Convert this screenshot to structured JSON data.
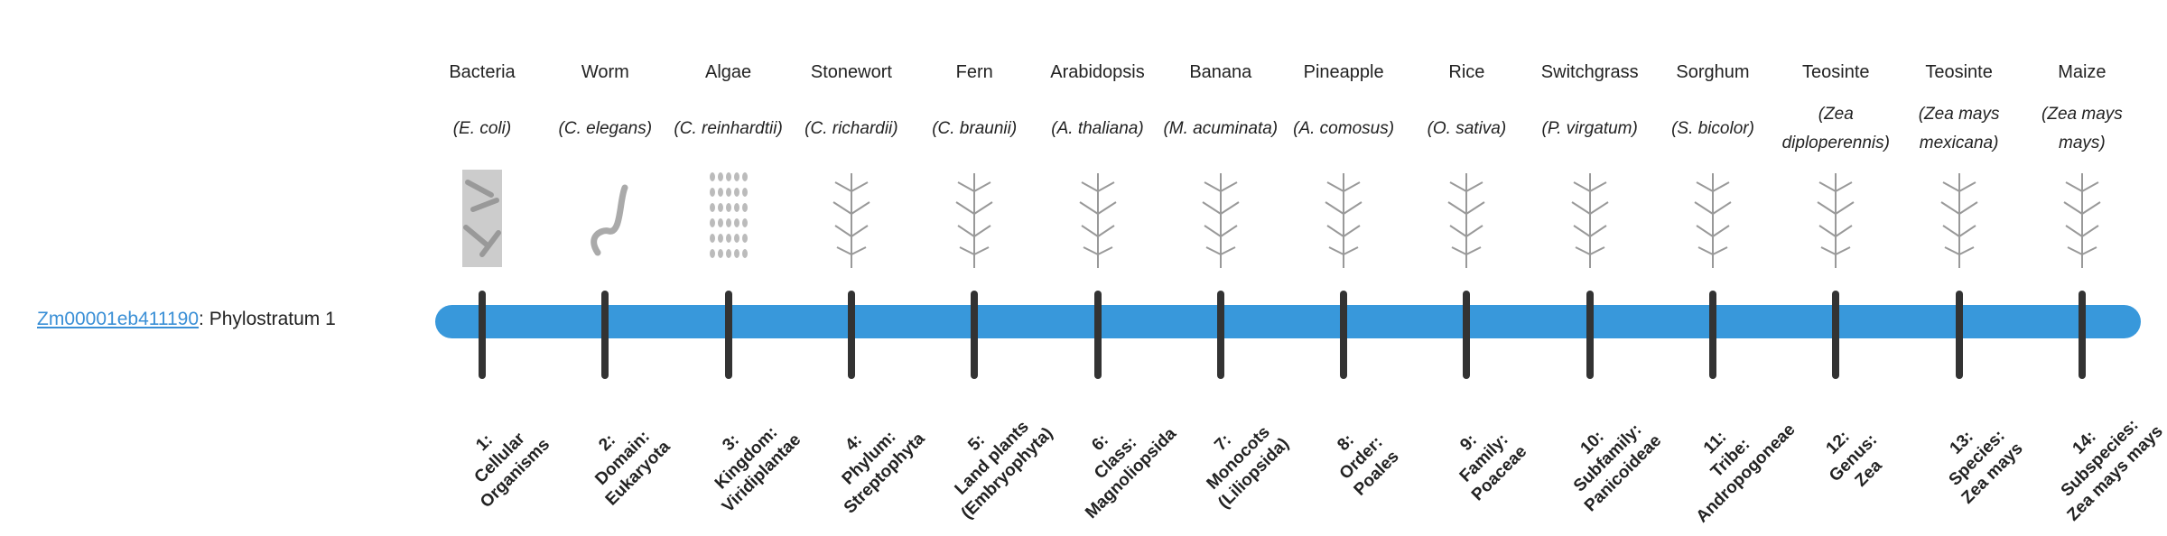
{
  "gene": {
    "id": "Zm00001eb411190",
    "suffix": ": Phylostratum 1"
  },
  "bar_color": "#3898db",
  "strata": [
    {
      "common": "Bacteria",
      "sci": "(E. coli)",
      "rank": [
        "1:",
        "Cellular",
        "Organisms"
      ],
      "icon": "bacteria-icon"
    },
    {
      "common": "Worm",
      "sci": "(C. elegans)",
      "rank": [
        "2:",
        "Domain:",
        "Eukaryota"
      ],
      "icon": "worm-icon"
    },
    {
      "common": "Algae",
      "sci": "(C. reinhardtii)",
      "rank": [
        "3:",
        "Kingdom:",
        "Viridiplantae"
      ],
      "icon": "algae-icon"
    },
    {
      "common": "Stonewort",
      "sci": "(C. richardii)",
      "rank": [
        "4:",
        "Phylum:",
        "Streptophyta"
      ],
      "icon": "stonewort-icon"
    },
    {
      "common": "Fern",
      "sci": "(C. braunii)",
      "rank": [
        "5:",
        "Land plants",
        "(Embryophyta)"
      ],
      "icon": "fern-icon"
    },
    {
      "common": "Arabidopsis",
      "sci": "(A. thaliana)",
      "rank": [
        "6:",
        "Class:",
        "Magnoliopsida"
      ],
      "icon": "arabidopsis-icon"
    },
    {
      "common": "Banana",
      "sci": "(M. acuminata)",
      "rank": [
        "7:",
        "Monocots",
        "(Liliopsida)"
      ],
      "icon": "banana-icon"
    },
    {
      "common": "Pineapple",
      "sci": "(A. comosus)",
      "rank": [
        "8:",
        "Order:",
        "Poales"
      ],
      "icon": "pineapple-icon"
    },
    {
      "common": "Rice",
      "sci": "(O. sativa)",
      "rank": [
        "9:",
        "Family:",
        "Poaceae"
      ],
      "icon": "rice-icon"
    },
    {
      "common": "Switchgrass",
      "sci": "(P. virgatum)",
      "rank": [
        "10:",
        "Subfamily:",
        "Panicoideae"
      ],
      "icon": "switchgrass-icon"
    },
    {
      "common": "Sorghum",
      "sci": "(S. bicolor)",
      "rank": [
        "11:",
        "Tribe:",
        "Andropogoneae"
      ],
      "icon": "sorghum-icon"
    },
    {
      "common": "Teosinte",
      "sci": "(Zea diploperennis)",
      "rank": [
        "12:",
        "Genus:",
        "Zea"
      ],
      "icon": "teosinte-icon"
    },
    {
      "common": "Teosinte",
      "sci": "(Zea mays mexicana)",
      "rank": [
        "13:",
        "Species:",
        "Zea mays"
      ],
      "icon": "teosinte-icon"
    },
    {
      "common": "Maize",
      "sci": "(Zea mays mays)",
      "rank": [
        "14:",
        "Subspecies:",
        "Zea mays mays"
      ],
      "icon": "maize-icon"
    }
  ]
}
